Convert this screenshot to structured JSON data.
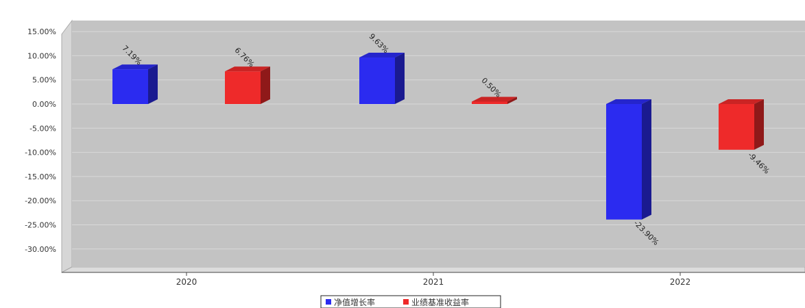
{
  "chart_data": {
    "type": "bar",
    "title": "",
    "categories": [
      "2020",
      "2021",
      "2022"
    ],
    "series": [
      {
        "name": "净值增长率",
        "values": [
          7.19,
          9.63,
          -23.9
        ],
        "labels": [
          "7.19%",
          "9.63%",
          "-23.90%"
        ],
        "color": "#2b2bf0"
      },
      {
        "name": "业绩基准收益率",
        "values": [
          6.76,
          0.5,
          -9.46
        ],
        "labels": [
          "6.76%",
          "0.50%",
          "-9.46%"
        ],
        "color": "#ee2a2a"
      }
    ],
    "yticks": [
      "15.00%",
      "10.00%",
      "5.00%",
      "0.00%",
      "-5.00%",
      "-10.00%",
      "-15.00%",
      "-20.00%",
      "-25.00%",
      "-30.00%"
    ],
    "ytick_values": [
      15,
      10,
      5,
      0,
      -5,
      -10,
      -15,
      -20,
      -25,
      -30
    ],
    "ylim": [
      -34,
      17
    ],
    "grid": true,
    "legend_position": "bottom-center",
    "colors": {
      "plot_background": "#c3c3c3",
      "wall": "#d6d6d6",
      "grid": "#d9d9d9"
    }
  }
}
